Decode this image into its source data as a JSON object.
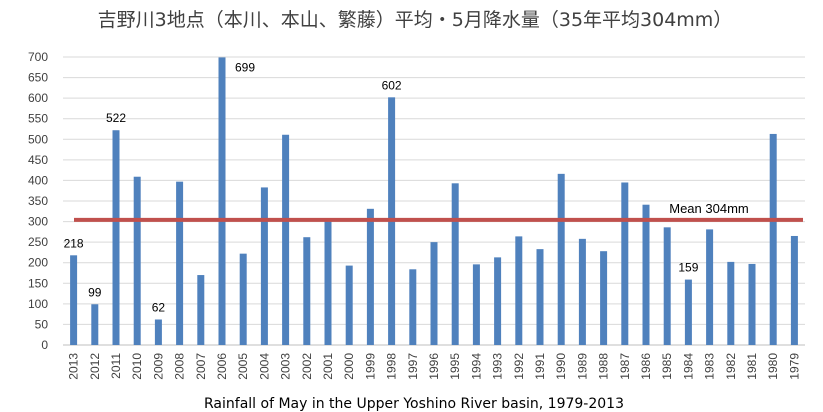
{
  "chart_data": {
    "type": "bar",
    "title": "吉野川3地点（本川、本山、繁藤）平均・5月降水量（35年平均304mm）",
    "caption": "Rainfall of May in the Upper Yoshino River basin, 1979-2013",
    "categories": [
      "2013",
      "2012",
      "2011",
      "2010",
      "2009",
      "2008",
      "2007",
      "2006",
      "2005",
      "2004",
      "2003",
      "2002",
      "2001",
      "2000",
      "1999",
      "1998",
      "1997",
      "1996",
      "1995",
      "1994",
      "1993",
      "1992",
      "1991",
      "1990",
      "1989",
      "1988",
      "1987",
      "1986",
      "1985",
      "1984",
      "1983",
      "1982",
      "1981",
      "1980",
      "1979"
    ],
    "values": [
      218,
      99,
      522,
      409,
      62,
      397,
      170,
      699,
      222,
      383,
      511,
      262,
      300,
      193,
      331,
      602,
      184,
      250,
      393,
      196,
      213,
      264,
      233,
      416,
      258,
      228,
      395,
      341,
      286,
      159,
      281,
      202,
      197,
      513,
      265
    ],
    "ylim": [
      0,
      700
    ],
    "yticks": [
      "0",
      "50",
      "100",
      "150",
      "200",
      "250",
      "300",
      "350",
      "400",
      "450",
      "500",
      "550",
      "600",
      "650",
      "700"
    ],
    "data_labels": [
      {
        "index": 0,
        "text": "218"
      },
      {
        "index": 1,
        "text": "99"
      },
      {
        "index": 2,
        "text": "522"
      },
      {
        "index": 4,
        "text": "62"
      },
      {
        "index": 7,
        "text": "699"
      },
      {
        "index": 15,
        "text": "602"
      },
      {
        "index": 29,
        "text": "159"
      }
    ],
    "mean": {
      "value": 304,
      "label": "Mean 304mm",
      "color": "#c0504d"
    },
    "bar_color": "#4f81bd",
    "grid": true
  }
}
